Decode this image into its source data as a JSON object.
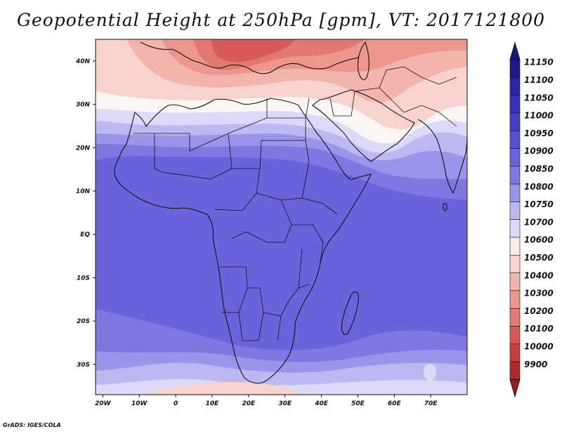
{
  "title": "Geopotential Height at 250hPa [gpm], VT: 2017121800",
  "credit": "GrADS: IGES/COLA",
  "lat_labels": [
    "40N",
    "30N",
    "20N",
    "10N",
    "EQ",
    "10S",
    "20S",
    "30S"
  ],
  "lat_values": [
    40,
    30,
    20,
    10,
    0,
    -10,
    -20,
    -30
  ],
  "lon_labels": [
    "20W",
    "10W",
    "0",
    "10E",
    "20E",
    "30E",
    "40E",
    "50E",
    "60E",
    "70E"
  ],
  "lon_values": [
    -20,
    -10,
    0,
    10,
    20,
    30,
    40,
    50,
    60,
    70
  ],
  "map_extent": {
    "lon_min": -22,
    "lon_max": 80,
    "lat_min": -37,
    "lat_max": 45
  },
  "colorbar": {
    "levels": [
      "11150",
      "11100",
      "11050",
      "11000",
      "10950",
      "10900",
      "10850",
      "10800",
      "10750",
      "10700",
      "10600",
      "10500",
      "10400",
      "10300",
      "10200",
      "10100",
      "10000",
      "9900"
    ],
    "colors": [
      "#1e1a8c",
      "#2a26a8",
      "#3631b8",
      "#4640c8",
      "#5650d4",
      "#6a63dc",
      "#7f78e2",
      "#9a94ea",
      "#bcb8f2",
      "#dcdaf8",
      "#fbecea",
      "#f8d2cc",
      "#f2b4ac",
      "#ec968e",
      "#e27872",
      "#d85a56",
      "#c84040",
      "#b02a2a"
    ],
    "top_arrow_color": "#1a1580",
    "bottom_arrow_color": "#a01c1c"
  },
  "field_colors": {
    "deep_blue": "#6a63dc",
    "mid_blue": "#7f78e2",
    "light_blue": "#9a94ea",
    "pale_blue": "#bcb8f2",
    "lavender": "#dcdaf8",
    "white": "#fbf6f4",
    "pale_red": "#f8d2cc",
    "light_red": "#f2b4ac",
    "mid_red": "#ec968e",
    "red": "#e27872",
    "dark_red": "#d85a56"
  }
}
